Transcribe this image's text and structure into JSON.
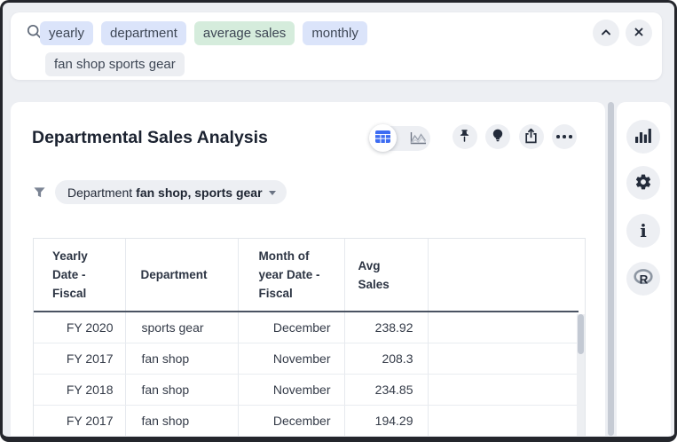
{
  "search": {
    "token_lines": [
      [
        {
          "label": "yearly",
          "style": "blue"
        },
        {
          "label": "department",
          "style": "blue"
        },
        {
          "label": "average sales",
          "style": "green"
        },
        {
          "label": "monthly",
          "style": "blue"
        }
      ],
      [
        {
          "label": "fan shop sports gear",
          "style": "gray"
        }
      ]
    ],
    "icons": [
      "search",
      "chevron-up",
      "close"
    ]
  },
  "header": {
    "title": "Departmental Sales Analysis"
  },
  "toolbar": {
    "icons": [
      "table-view",
      "chart-view",
      "pin",
      "insights-bulb",
      "share",
      "more-options"
    ]
  },
  "filter": {
    "label": "Department",
    "value": "fan shop, sports gear"
  },
  "table": {
    "columns": [
      "Yearly Date - Fiscal",
      "Department",
      "Month of year Date - Fiscal",
      "Avg Sales",
      ""
    ],
    "rows": [
      [
        "FY 2020",
        "sports gear",
        "December",
        "238.92",
        ""
      ],
      [
        "FY 2017",
        "fan shop",
        "November",
        "208.3",
        ""
      ],
      [
        "FY 2018",
        "fan shop",
        "November",
        "234.85",
        ""
      ],
      [
        "FY 2017",
        "fan shop",
        "December",
        "194.29",
        ""
      ]
    ]
  },
  "sidebar": {
    "icons": [
      "bar-chart",
      "settings-gear",
      "info",
      "r-logo"
    ]
  },
  "colors": {
    "accent_blue": "#3d6cf2",
    "token_blue": "#dbe4fa",
    "token_green": "#d5ecdc",
    "token_gray": "#eceef2",
    "icon_dark": "#232b3a",
    "header_underline": "#4a5362",
    "page_bg": "#edeff3"
  }
}
